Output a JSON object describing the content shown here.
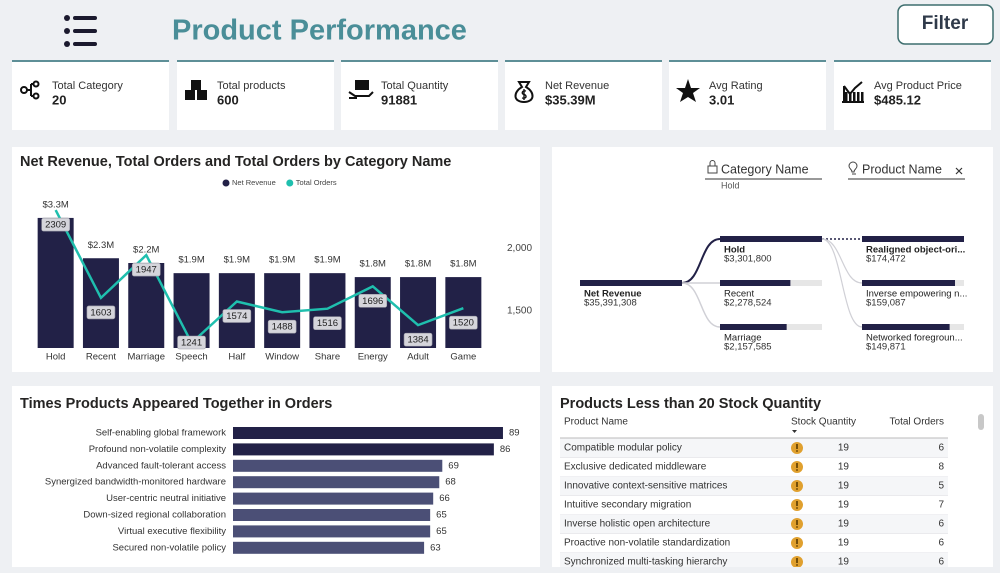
{
  "header": {
    "title": "Product Performance",
    "filter_button": "Filter"
  },
  "kpis": [
    {
      "label": "Total Category",
      "value": "20"
    },
    {
      "label": "Total products",
      "value": "600"
    },
    {
      "label": "Total Quantity",
      "value": "91881"
    },
    {
      "label": "Net Revenue",
      "value": "$35.39M"
    },
    {
      "label": "Avg Rating",
      "value": "3.01"
    },
    {
      "label": "Avg Product Price",
      "value": "$485.12"
    }
  ],
  "chart_data": [
    {
      "type": "combo",
      "title": "Net Revenue, Total Orders and Total Orders by Category Name",
      "categories": [
        "Hold",
        "Recent",
        "Marriage",
        "Speech",
        "Half",
        "Window",
        "Share",
        "Energy",
        "Adult",
        "Game"
      ],
      "series": [
        {
          "name": "Net Revenue",
          "type": "bar",
          "color": "#222147",
          "values": [
            3301800,
            2278524,
            2157585,
            1900000,
            1900000,
            1900000,
            1900000,
            1800000,
            1800000,
            1800000
          ],
          "value_labels": [
            "$3.3M",
            "$2.3M",
            "$2.2M",
            "$1.9M",
            "$1.9M",
            "$1.9M",
            "$1.9M",
            "$1.8M",
            "$1.8M",
            "$1.8M"
          ]
        },
        {
          "name": "Total Orders",
          "type": "line",
          "axis": "y2",
          "color": "#1fbfae",
          "values": [
            2309,
            1603,
            1947,
            1241,
            1574,
            1488,
            1516,
            1696,
            1384,
            1520
          ]
        }
      ],
      "ylim": [
        0,
        3630000
      ],
      "y2lim": [
        1200,
        2350
      ],
      "y2ticks": [
        {
          "value": 1500,
          "label": "1,500"
        },
        {
          "value": 2000,
          "label": "2,000"
        }
      ],
      "legend": "top"
    },
    {
      "type": "bar",
      "orientation": "horizontal",
      "title": "Times Products Appeared Together in Orders",
      "categories": [
        "Self-enabling global framework",
        "Profound non-volatile complexity",
        "Advanced fault-tolerant access",
        "Synergized bandwidth-monitored hardware",
        "User-centric neutral initiative",
        "Down-sized regional collaboration",
        "Virtual executive flexibility",
        "Secured non-volatile policy"
      ],
      "values": [
        89,
        86,
        69,
        68,
        66,
        65,
        65,
        63
      ],
      "colors": [
        "#222147",
        "#222147",
        "#4b4f76",
        "#4b4f76",
        "#4b4f76",
        "#4b4f76",
        "#4b4f76",
        "#4b4f76"
      ],
      "xlim": [
        0,
        90
      ]
    }
  ],
  "decomposition_tree": {
    "filters": [
      "Category Name",
      "Product Name"
    ],
    "selected": "Hold",
    "root": {
      "label": "Net Revenue",
      "value": 35391308,
      "value_label": "$35,391,308"
    },
    "level1": [
      {
        "label": "Hold",
        "value": 3301800,
        "value_label": "$3,301,800"
      },
      {
        "label": "Recent",
        "value": 2278524,
        "value_label": "$2,278,524"
      },
      {
        "label": "Marriage",
        "value": 2157585,
        "value_label": "$2,157,585"
      }
    ],
    "level2": [
      {
        "label": "Realigned object-ori...",
        "value": 174472,
        "value_label": "$174,472"
      },
      {
        "label": "Inverse empowering n...",
        "value": 159087,
        "value_label": "$159,087"
      },
      {
        "label": "Networked foregroun...",
        "value": 149871,
        "value_label": "$149,871"
      }
    ]
  },
  "table": {
    "title": "Products Less than 20 Stock Quantity",
    "columns": [
      "Product Name",
      "Stock Quantity",
      "Total Orders"
    ],
    "rows": [
      [
        "Compatible modular policy",
        19,
        6
      ],
      [
        "Exclusive dedicated middleware",
        19,
        8
      ],
      [
        "Innovative context-sensitive matrices",
        19,
        5
      ],
      [
        "Intuitive secondary migration",
        19,
        7
      ],
      [
        "Inverse holistic open architecture",
        19,
        6
      ],
      [
        "Proactive non-volatile standardization",
        19,
        6
      ],
      [
        "Synchronized multi-tasking hierarchy",
        19,
        6
      ]
    ]
  }
}
